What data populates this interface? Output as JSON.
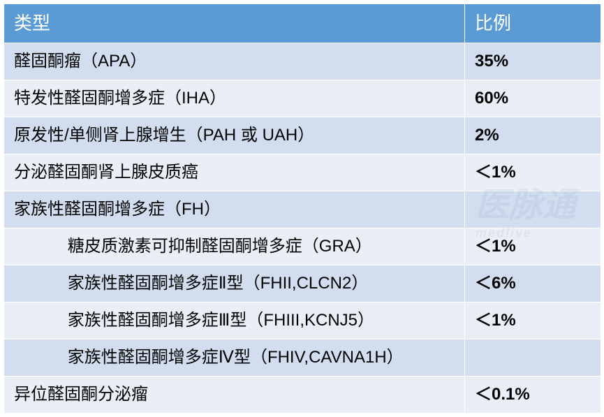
{
  "table": {
    "header": {
      "type_label": "类型",
      "ratio_label": "比例"
    },
    "columns": {
      "type_width": 660,
      "ratio_width": 195
    },
    "colors": {
      "header_bg": "#5b9bd5",
      "header_fg": "#ffffff",
      "row_odd_bg": "#d2deef",
      "row_even_bg": "#eaeff7",
      "border": "#ffffff",
      "text": "#000000"
    },
    "font": {
      "header_size": 26,
      "cell_size": 24,
      "ratio_weight": "bold",
      "indent_em": 3.2
    },
    "rows": [
      {
        "type": "醛固酮瘤（APA）",
        "ratio": "35%",
        "indent": false,
        "band": "odd"
      },
      {
        "type": "特发性醛固酮增多症（IHA）",
        "ratio": "60%",
        "indent": false,
        "band": "even"
      },
      {
        "type": "原发性/单侧肾上腺增生（PAH 或 UAH）",
        "ratio": "2%",
        "indent": false,
        "band": "odd"
      },
      {
        "type": "分泌醛固酮肾上腺皮质癌",
        "ratio": "＜1%",
        "indent": false,
        "band": "even"
      },
      {
        "type": "家族性醛固酮增多症（FH）",
        "ratio": "",
        "indent": false,
        "band": "odd"
      },
      {
        "type": "糖皮质激素可抑制醛固酮增多症（GRA）",
        "ratio": "＜1%",
        "indent": true,
        "band": "even"
      },
      {
        "type": "家族性醛固酮增多症Ⅱ型（FHII,CLCN2）",
        "ratio": "＜6%",
        "indent": true,
        "band": "odd"
      },
      {
        "type": "家族性醛固酮增多症Ⅲ型（FHIII,KCNJ5）",
        "ratio": "＜1%",
        "indent": true,
        "band": "even"
      },
      {
        "type": "家族性醛固酮增多症Ⅳ型（FHIV,CAVNA1H）",
        "ratio": "",
        "indent": true,
        "band": "odd"
      },
      {
        "type": "异位醛固酮分泌瘤",
        "ratio": "＜0.1%",
        "indent": false,
        "band": "even"
      }
    ]
  },
  "watermark": {
    "main": "医脉通",
    "sub": "medlive"
  }
}
